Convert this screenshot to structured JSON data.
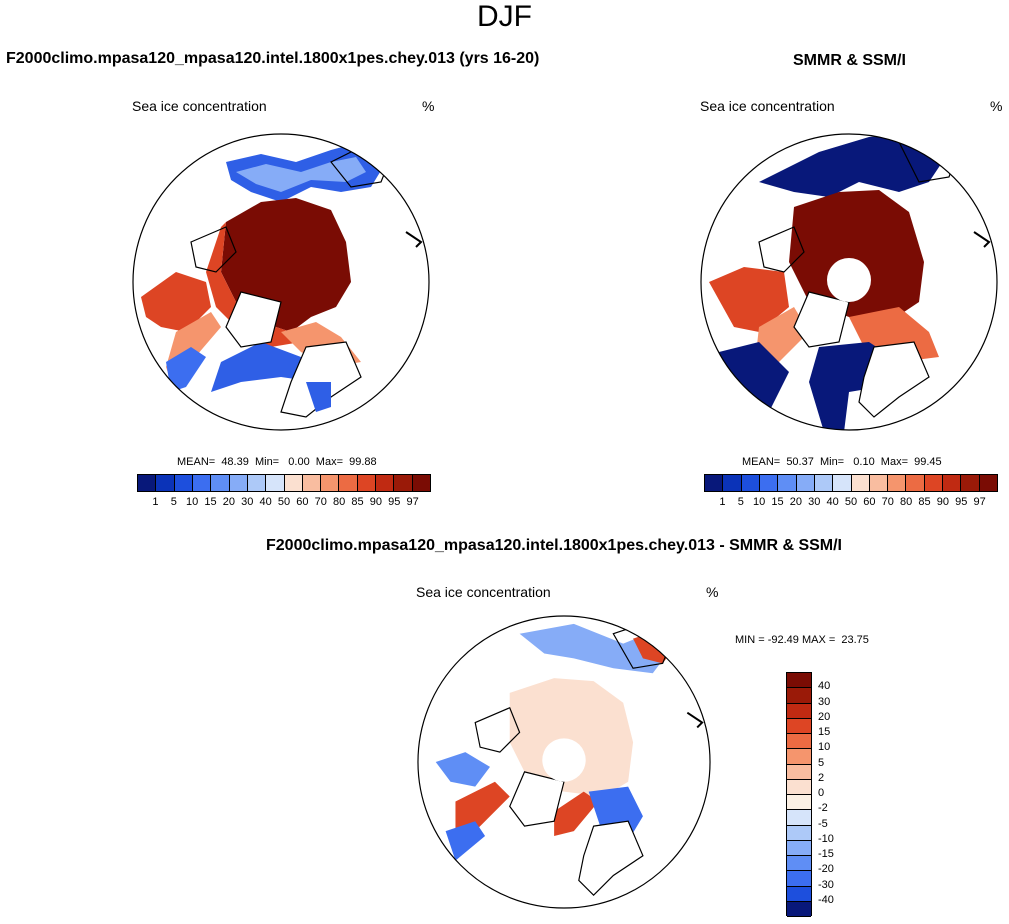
{
  "figure": {
    "title": "DJF"
  },
  "panels": [
    {
      "title": "F2000climo.mpasa120_mpasa120.intel.1800x1pes.chey.013 (yrs 16-20)",
      "variable": "Sea ice concentration",
      "units": "%",
      "stats": "MEAN=  48.39  Min=   0.00  Max=  99.88",
      "pole_hole": false
    },
    {
      "title": "SMMR & SSM/I",
      "variable": "Sea ice concentration",
      "units": "%",
      "stats": "MEAN=  50.37  Min=   0.10  Max=  99.45",
      "pole_hole": true
    },
    {
      "title": "F2000climo.mpasa120_mpasa120.intel.1800x1pes.chey.013 - SMMR & SSM/I",
      "variable": "Sea ice concentration",
      "units": "%",
      "stats": "MIN = -92.49 MAX =  23.75",
      "pole_hole": true
    }
  ],
  "colorbar_concentration": {
    "labels": [
      "1",
      "5",
      "10",
      "15",
      "20",
      "30",
      "40",
      "50",
      "60",
      "70",
      "80",
      "85",
      "90",
      "95",
      "97"
    ],
    "colors": [
      "#08187a",
      "#0b33b8",
      "#1d4fdd",
      "#3c6ef0",
      "#5f8ef5",
      "#86acf7",
      "#adc9f8",
      "#d6e4fa",
      "#fbe0d0",
      "#f9bda0",
      "#f5956d",
      "#ec6b43",
      "#dd4524",
      "#c02a12",
      "#9a1a08",
      "#7a0c04"
    ]
  },
  "colorbar_difference": {
    "labels": [
      "40",
      "30",
      "20",
      "15",
      "10",
      "5",
      "2",
      "0",
      "-2",
      "-5",
      "-10",
      "-15",
      "-20",
      "-30",
      "-40"
    ],
    "colors": [
      "#7a0c04",
      "#9a1a08",
      "#c02a12",
      "#dd4524",
      "#ec6b43",
      "#f5956d",
      "#f9bda0",
      "#fbe0d0",
      "#fbf0e4",
      "#d6e4fa",
      "#adc9f8",
      "#86acf7",
      "#5f8ef5",
      "#3c6ef0",
      "#1d4fdd",
      "#08187a"
    ]
  }
}
